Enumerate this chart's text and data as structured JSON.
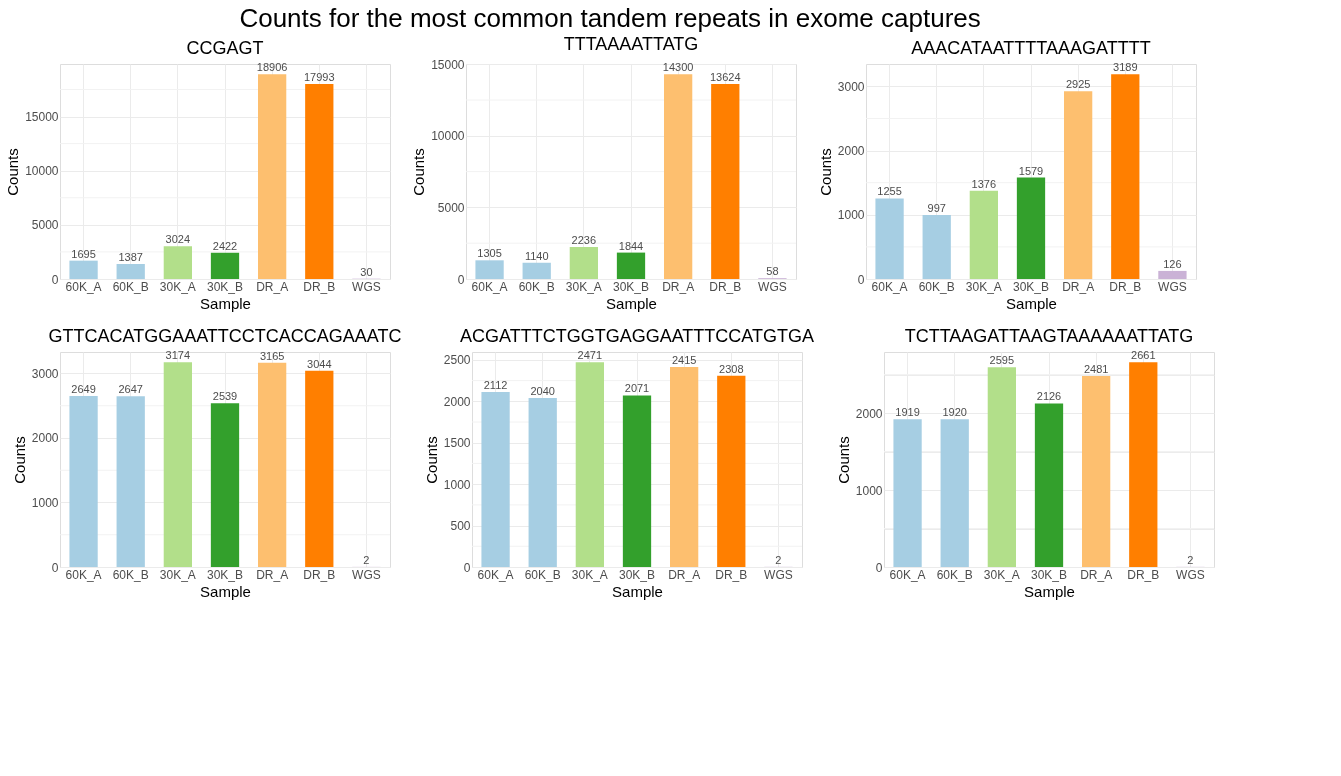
{
  "chart_data": [
    {
      "type": "bar",
      "title": "CCGAGT",
      "xlabel": "Sample",
      "ylabel": "Counts",
      "categories": [
        "60K_A",
        "60K_B",
        "30K_A",
        "30K_B",
        "DR_A",
        "DR_B",
        "WGS"
      ],
      "values": [
        1695,
        1387,
        3024,
        2422,
        18906,
        17993,
        30
      ],
      "colors": [
        "#a6cee3",
        "#a6cee3",
        "#b2df8a",
        "#33a02c",
        "#fdbf6f",
        "#ff7f00",
        "#cab2d6"
      ],
      "ylim": [
        0,
        19850
      ],
      "yticks": [
        0,
        {
          "value": 2500,
          "label": null
        },
        5000,
        {
          "value": 7500,
          "label": null
        },
        10000,
        {
          "value": 12500,
          "label": null
        },
        15000,
        {
          "value": 17500,
          "label": null
        }
      ],
      "grid": true,
      "data_labels": true
    },
    {
      "type": "bar",
      "title": "TTTAAAATTATG",
      "xlabel": "Sample",
      "ylabel": "Counts",
      "categories": [
        "60K_A",
        "60K_B",
        "30K_A",
        "30K_B",
        "DR_A",
        "DR_B",
        "WGS"
      ],
      "values": [
        1305,
        1140,
        2236,
        1844,
        14300,
        13624,
        58
      ],
      "colors": [
        "#a6cee3",
        "#a6cee3",
        "#b2df8a",
        "#33a02c",
        "#fdbf6f",
        "#ff7f00",
        "#cab2d6"
      ],
      "ylim": [
        0,
        15015
      ],
      "yticks": [
        0,
        {
          "value": 2500,
          "label": null
        },
        5000,
        {
          "value": 7500,
          "label": null
        },
        10000,
        {
          "value": 12500,
          "label": null
        },
        15000
      ],
      "grid": true,
      "data_labels": true
    },
    {
      "type": "bar",
      "title": "AAACATAATTTTAAAGATTTT",
      "xlabel": "Sample",
      "ylabel": "Counts",
      "categories": [
        "60K_A",
        "60K_B",
        "30K_A",
        "30K_B",
        "DR_A",
        "DR_B",
        "WGS"
      ],
      "values": [
        1255,
        997,
        1376,
        1579,
        2925,
        3189,
        126
      ],
      "colors": [
        "#a6cee3",
        "#a6cee3",
        "#b2df8a",
        "#33a02c",
        "#fdbf6f",
        "#ff7f00",
        "#cab2d6"
      ],
      "ylim": [
        0,
        3348
      ],
      "yticks": [
        0,
        {
          "value": 500,
          "label": null
        },
        1000,
        {
          "value": 1500,
          "label": null
        },
        2000,
        {
          "value": 2500,
          "label": null
        },
        3000
      ],
      "grid": true,
      "data_labels": true
    },
    {
      "type": "bar",
      "title": "GTTCACATGGAAATTCCTCACCAGAAATC",
      "xlabel": "Sample",
      "ylabel": "Counts",
      "categories": [
        "60K_A",
        "60K_B",
        "30K_A",
        "30K_B",
        "DR_A",
        "DR_B",
        "WGS"
      ],
      "values": [
        2649,
        2647,
        3174,
        2539,
        3165,
        3044,
        2
      ],
      "colors": [
        "#a6cee3",
        "#a6cee3",
        "#b2df8a",
        "#33a02c",
        "#fdbf6f",
        "#ff7f00",
        "#cab2d6"
      ],
      "ylim": [
        0,
        3333
      ],
      "yticks": [
        0,
        {
          "value": 500,
          "label": null
        },
        1000,
        {
          "value": 1500,
          "label": null
        },
        2000,
        {
          "value": 2500,
          "label": null
        },
        3000
      ],
      "grid": true,
      "data_labels": true
    },
    {
      "type": "bar",
      "title": "ACGATTTCTGGTGAGGAATTTCCATGTGA",
      "xlabel": "Sample",
      "ylabel": "Counts",
      "categories": [
        "60K_A",
        "60K_B",
        "30K_A",
        "30K_B",
        "DR_A",
        "DR_B",
        "WGS"
      ],
      "values": [
        2112,
        2040,
        2471,
        2071,
        2415,
        2308,
        2
      ],
      "colors": [
        "#a6cee3",
        "#a6cee3",
        "#b2df8a",
        "#33a02c",
        "#fdbf6f",
        "#ff7f00",
        "#cab2d6"
      ],
      "ylim": [
        0,
        2595
      ],
      "yticks": [
        0,
        {
          "value": 250,
          "label": null
        },
        500,
        {
          "value": 750,
          "label": null
        },
        1000,
        {
          "value": 1250,
          "label": null
        },
        1500,
        {
          "value": 1750,
          "label": null
        },
        2000,
        {
          "value": 2250,
          "label": null
        },
        2500
      ],
      "grid": true,
      "data_labels": true
    },
    {
      "type": "bar",
      "title": "TCTTAAGATTAAGTAAAAAATTATG",
      "xlabel": "Sample",
      "ylabel": "Counts",
      "categories": [
        "60K_A",
        "60K_B",
        "30K_A",
        "30K_B",
        "DR_A",
        "DR_B",
        "WGS"
      ],
      "values": [
        1919,
        1920,
        2595,
        2126,
        2481,
        2661,
        2
      ],
      "colors": [
        "#a6cee3",
        "#a6cee3",
        "#b2df8a",
        "#33a02c",
        "#fdbf6f",
        "#ff7f00",
        "#cab2d6"
      ],
      "ylim": [
        0,
        2794
      ],
      "yticks": [
        0,
        {
          "value": 500,
          "label": null
        },
        1000,
        {
          "value": 1500,
          "label": null
        },
        2000,
        {
          "value": 2500,
          "label": null
        }
      ],
      "grid": true,
      "data_labels": true
    },
    {
      "type": "other",
      "title": "Counts for the most common tandem repeats in exome captures"
    }
  ]
}
